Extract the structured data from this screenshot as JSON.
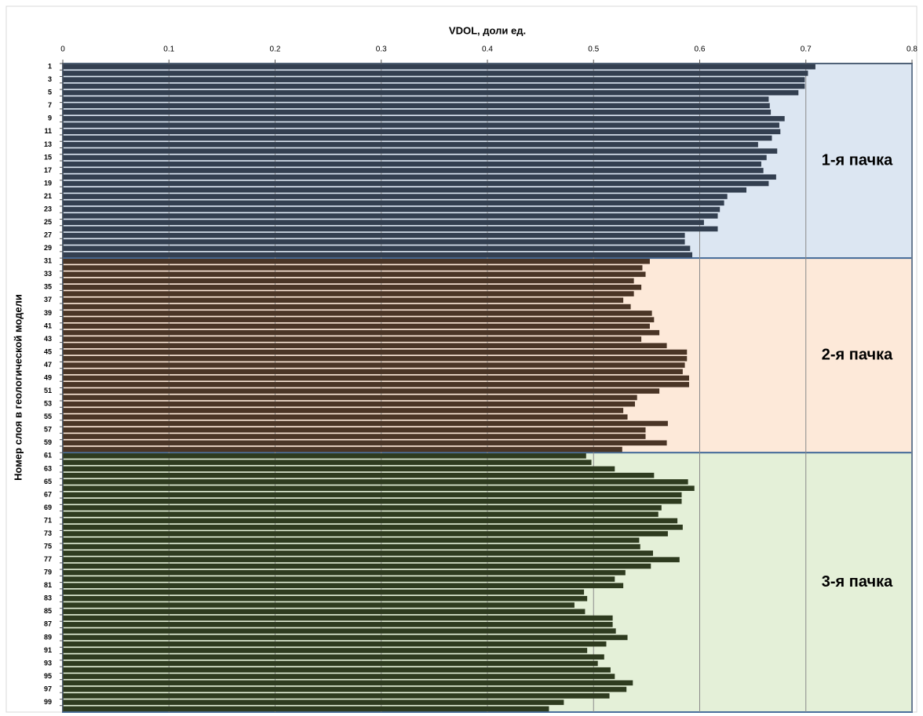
{
  "chart_data": {
    "type": "barh",
    "x_label": "VDOL, доли ед.",
    "y_label": "Номер слоя в геологической модели",
    "categories": [
      1,
      null,
      3,
      null,
      5,
      null,
      7,
      null,
      9,
      null,
      11,
      null,
      13,
      null,
      15,
      null,
      17,
      null,
      19,
      null,
      21,
      null,
      23,
      null,
      25,
      null,
      27,
      null,
      29,
      null,
      31,
      null,
      33,
      null,
      35,
      null,
      37,
      null,
      39,
      null,
      41,
      null,
      43,
      null,
      45,
      null,
      47,
      null,
      49,
      null,
      51,
      null,
      53,
      null,
      55,
      null,
      57,
      null,
      59,
      null,
      61,
      null,
      63,
      null,
      65,
      null,
      67,
      null,
      69,
      null,
      71,
      null,
      73,
      null,
      75,
      null,
      77,
      null,
      79,
      null,
      81,
      null,
      83,
      null,
      85,
      null,
      87,
      null,
      89,
      null,
      91,
      null,
      93,
      null,
      95,
      null,
      97,
      null,
      99,
      null
    ],
    "series": [
      {
        "name": "1-я пачка",
        "color": "#333f50",
        "background": "#dce6f2",
        "values": [
          0.709,
          0.702,
          0.699,
          0.699,
          0.693,
          0.665,
          0.666,
          0.667,
          0.68,
          0.675,
          0.676,
          0.668,
          0.655,
          0.673,
          0.663,
          0.658,
          0.66,
          0.672,
          0.665,
          0.644,
          0.626,
          0.623,
          0.619,
          0.617,
          0.604,
          0.617,
          0.586,
          0.586,
          0.591,
          0.593,
          null,
          null,
          null,
          null,
          null,
          null,
          null,
          null,
          null,
          null,
          null,
          null,
          null,
          null,
          null,
          null,
          null,
          null,
          null,
          null,
          null,
          null,
          null,
          null,
          null,
          null,
          null,
          null,
          null,
          null,
          null,
          null,
          null,
          null,
          null,
          null,
          null,
          null,
          null,
          null,
          null,
          null,
          null,
          null,
          null,
          null,
          null,
          null,
          null,
          null,
          null,
          null,
          null,
          null,
          null,
          null,
          null,
          null,
          null,
          null,
          null,
          null,
          null,
          null,
          null,
          null,
          null,
          null,
          null,
          null
        ]
      },
      {
        "name": "2-я пачка",
        "color": "#4a3526",
        "background": "#fde9d9",
        "values": [
          null,
          null,
          null,
          null,
          null,
          null,
          null,
          null,
          null,
          null,
          null,
          null,
          null,
          null,
          null,
          null,
          null,
          null,
          null,
          null,
          null,
          null,
          null,
          null,
          null,
          null,
          null,
          null,
          null,
          null,
          0.553,
          0.546,
          0.549,
          0.538,
          0.545,
          0.538,
          0.528,
          0.535,
          0.555,
          0.557,
          0.553,
          0.562,
          0.545,
          0.569,
          0.588,
          0.588,
          0.586,
          0.584,
          0.59,
          0.59,
          0.562,
          0.541,
          0.539,
          0.528,
          0.532,
          0.57,
          0.549,
          0.549,
          0.569,
          0.527,
          null,
          null,
          null,
          null,
          null,
          null,
          null,
          null,
          null,
          null,
          null,
          null,
          null,
          null,
          null,
          null,
          null,
          null,
          null,
          null,
          null,
          null,
          null,
          null,
          null,
          null,
          null,
          null,
          null,
          null,
          null,
          null,
          null,
          null,
          null,
          null,
          null,
          null,
          null,
          null
        ]
      },
      {
        "name": "3-я пачка",
        "color": "#2e3b1f",
        "background": "#e4f0d8",
        "values": [
          null,
          null,
          null,
          null,
          null,
          null,
          null,
          null,
          null,
          null,
          null,
          null,
          null,
          null,
          null,
          null,
          null,
          null,
          null,
          null,
          null,
          null,
          null,
          null,
          null,
          null,
          null,
          null,
          null,
          null,
          null,
          null,
          null,
          null,
          null,
          null,
          null,
          null,
          null,
          null,
          null,
          null,
          null,
          null,
          null,
          null,
          null,
          null,
          null,
          null,
          null,
          null,
          null,
          null,
          null,
          null,
          null,
          null,
          null,
          null,
          0.493,
          0.498,
          0.52,
          0.557,
          0.589,
          0.595,
          0.583,
          0.583,
          0.564,
          0.561,
          0.579,
          0.584,
          0.57,
          0.543,
          0.544,
          0.556,
          0.581,
          0.554,
          0.53,
          0.52,
          0.528,
          0.491,
          0.494,
          0.482,
          0.492,
          0.518,
          0.518,
          0.521,
          0.532,
          0.512,
          0.494,
          0.51,
          0.504,
          0.516,
          0.52,
          0.537,
          0.531,
          0.515,
          0.472,
          0.458
        ]
      }
    ],
    "xlim": [
      0,
      0.8
    ],
    "xticks": [
      0,
      0.1,
      0.2,
      0.3,
      0.4,
      0.5,
      0.6,
      0.7,
      0.8
    ],
    "grid": true
  }
}
